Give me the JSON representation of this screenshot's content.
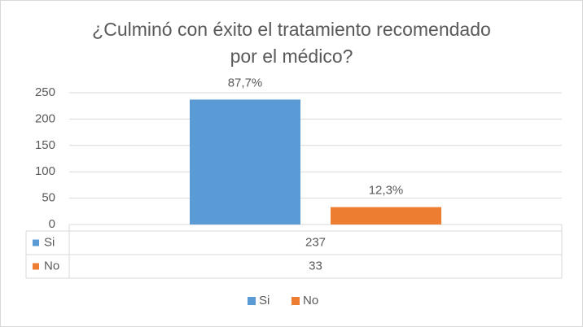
{
  "chart_data": {
    "type": "bar",
    "title": "¿Culminó con éxito el tratamiento recomendado por el médico?",
    "categories": [
      null
    ],
    "series": [
      {
        "name": "Si",
        "color": "#5b9bd5",
        "values": [
          237
        ],
        "data_label": "87,7%"
      },
      {
        "name": "No",
        "color": "#ed7d31",
        "values": [
          33
        ],
        "data_label": "12,3%"
      }
    ],
    "ylim": [
      0,
      250
    ],
    "yticks": [
      0,
      50,
      100,
      150,
      200,
      250
    ],
    "grid": true,
    "legend": "bottom",
    "data_table": true
  }
}
